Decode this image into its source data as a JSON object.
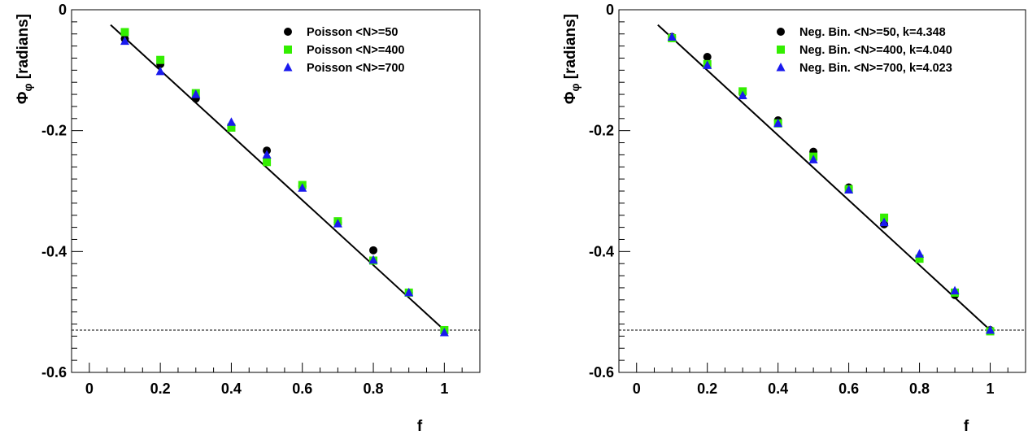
{
  "chart_data": [
    {
      "type": "scatter",
      "xlabel": "f",
      "ylabel": "Φ_φ [radians]",
      "xlim": [
        -0.05,
        1.1
      ],
      "ylim": [
        -0.6,
        0
      ],
      "xticks": [
        0,
        0.2,
        0.4,
        0.6,
        0.8,
        1
      ],
      "xtick_labels": [
        "0",
        "0.2",
        "0.4",
        "0.6",
        "0.8",
        "1"
      ],
      "yticks": [
        0,
        -0.2,
        -0.4,
        -0.6
      ],
      "ytick_labels": [
        "0",
        "-0.2",
        "-0.4",
        "-0.6"
      ],
      "reference_line_y": -0.53,
      "fit_line": {
        "x": [
          0.06,
          1.0
        ],
        "y": [
          -0.025,
          -0.53
        ]
      },
      "legend_position": "top-right",
      "series": [
        {
          "name": "Poisson <N>=50",
          "marker": "circle",
          "color": "#000000",
          "x": [
            0.1,
            0.2,
            0.3,
            0.4,
            0.5,
            0.6,
            0.7,
            0.8,
            0.9,
            1.0
          ],
          "y": [
            -0.048,
            -0.09,
            -0.147,
            -0.192,
            -0.233,
            -0.292,
            -0.352,
            -0.398,
            -0.468,
            -0.53
          ]
        },
        {
          "name": "Poisson <N>=400",
          "marker": "square",
          "color": "#33ee00",
          "x": [
            0.1,
            0.2,
            0.3,
            0.4,
            0.5,
            0.6,
            0.7,
            0.8,
            0.9,
            1.0
          ],
          "y": [
            -0.037,
            -0.083,
            -0.138,
            -0.195,
            -0.252,
            -0.29,
            -0.35,
            -0.415,
            -0.468,
            -0.53
          ]
        },
        {
          "name": "Poisson <N>=700",
          "marker": "triangle",
          "color": "#1a1aee",
          "x": [
            0.1,
            0.2,
            0.3,
            0.4,
            0.5,
            0.6,
            0.7,
            0.8,
            0.9,
            1.0
          ],
          "y": [
            -0.052,
            -0.102,
            -0.14,
            -0.186,
            -0.24,
            -0.295,
            -0.354,
            -0.414,
            -0.468,
            -0.534
          ]
        }
      ]
    },
    {
      "type": "scatter",
      "xlabel": "f",
      "ylabel": "Φ_φ [radians]",
      "xlim": [
        -0.05,
        1.1
      ],
      "ylim": [
        -0.6,
        0
      ],
      "xticks": [
        0,
        0.2,
        0.4,
        0.6,
        0.8,
        1
      ],
      "xtick_labels": [
        "0",
        "0.2",
        "0.4",
        "0.6",
        "0.8",
        "1"
      ],
      "yticks": [
        0,
        -0.2,
        -0.4,
        -0.6
      ],
      "ytick_labels": [
        "0",
        "-0.2",
        "-0.4",
        "-0.6"
      ],
      "reference_line_y": -0.53,
      "fit_line": {
        "x": [
          0.06,
          1.0
        ],
        "y": [
          -0.025,
          -0.53
        ]
      },
      "legend_position": "top-right",
      "series": [
        {
          "name": "Neg. Bin. <N>=50, k=4.348",
          "marker": "circle",
          "color": "#000000",
          "x": [
            0.1,
            0.2,
            0.3,
            0.4,
            0.5,
            0.6,
            0.7,
            0.8,
            0.9,
            1.0
          ],
          "y": [
            -0.045,
            -0.078,
            -0.138,
            -0.183,
            -0.235,
            -0.294,
            -0.355,
            -0.41,
            -0.472,
            -0.53
          ]
        },
        {
          "name": "Neg. Bin. <N>=400, k=4.040",
          "marker": "square",
          "color": "#33ee00",
          "x": [
            0.1,
            0.2,
            0.3,
            0.4,
            0.5,
            0.6,
            0.7,
            0.8,
            0.9,
            1.0
          ],
          "y": [
            -0.047,
            -0.09,
            -0.135,
            -0.188,
            -0.243,
            -0.297,
            -0.344,
            -0.412,
            -0.468,
            -0.532
          ]
        },
        {
          "name": "Neg. Bin. <N>=700, k=4.023",
          "marker": "triangle",
          "color": "#1a1aee",
          "x": [
            0.1,
            0.2,
            0.3,
            0.4,
            0.5,
            0.6,
            0.7,
            0.8,
            0.9,
            1.0
          ],
          "y": [
            -0.045,
            -0.092,
            -0.142,
            -0.188,
            -0.248,
            -0.298,
            -0.352,
            -0.404,
            -0.465,
            -0.53
          ]
        }
      ]
    }
  ]
}
